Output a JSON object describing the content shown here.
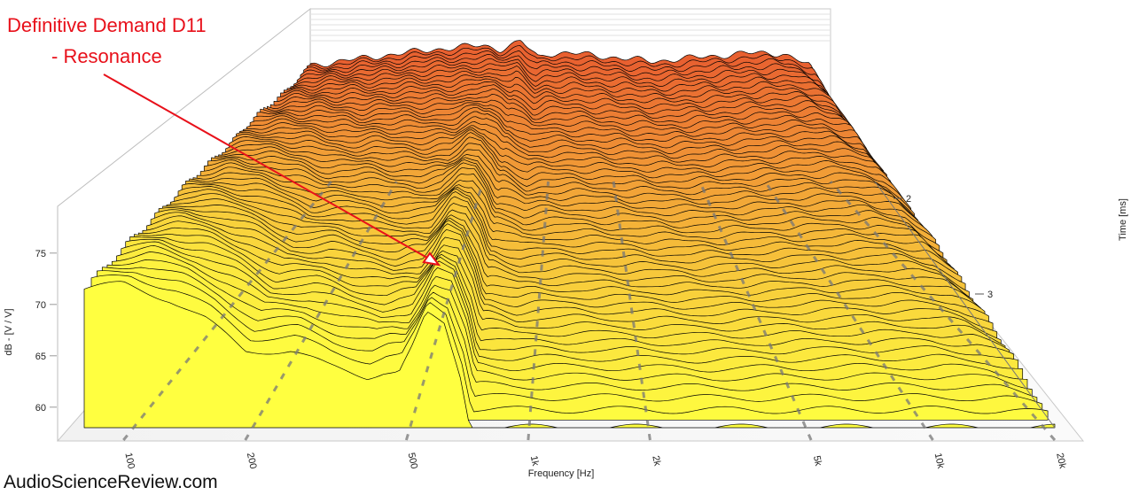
{
  "annotation": {
    "title": "Definitive Demand D11",
    "subtitle": "- Resonance",
    "color": "#e8101a"
  },
  "watermark": "AudioScienceReview.com",
  "chart_data": {
    "type": "area",
    "subtype": "waterfall-3d",
    "xlabel": "Frequency [Hz]",
    "ylabel": "dB - [V / V]",
    "zlabel": "Time [ms]",
    "x_scale": "log",
    "xlim": [
      80,
      20000
    ],
    "ylim": [
      58,
      78
    ],
    "x_ticks": [
      {
        "value": 100,
        "label": "100"
      },
      {
        "value": 200,
        "label": "200"
      },
      {
        "value": 500,
        "label": "500"
      },
      {
        "value": 1000,
        "label": "1k"
      },
      {
        "value": 2000,
        "label": "2k"
      },
      {
        "value": 5000,
        "label": "5k"
      },
      {
        "value": 10000,
        "label": "10k"
      },
      {
        "value": 20000,
        "label": "20k"
      }
    ],
    "y_ticks": [
      {
        "value": 60,
        "label": "60"
      },
      {
        "value": 65,
        "label": "65"
      },
      {
        "value": 70,
        "label": "70"
      },
      {
        "value": 75,
        "label": "75"
      }
    ],
    "z_ticks": [
      {
        "value": 2,
        "label": "2"
      },
      {
        "value": 3,
        "label": "3"
      }
    ],
    "slice_count": 60,
    "first_slice_profile": {
      "freq": [
        80,
        100,
        130,
        160,
        200,
        260,
        320,
        400,
        440,
        480,
        520,
        560,
        620,
        680,
        720,
        760,
        800,
        850,
        20000
      ],
      "db": [
        71.5,
        72,
        70.5,
        68.5,
        65.5,
        65.5,
        64,
        63,
        63.5,
        63.5,
        66,
        69,
        68,
        63,
        58,
        58,
        58,
        58,
        58
      ]
    },
    "rear_slice_profile": {
      "freq": [
        80,
        150,
        300,
        500,
        600,
        680,
        750,
        900,
        1000,
        1300,
        2000,
        3000,
        5000,
        8000,
        12000,
        16000,
        20000
      ],
      "db": [
        75,
        76,
        77,
        77.5,
        77,
        77.5,
        78,
        76,
        76.5,
        76.5,
        76,
        75.5,
        76,
        76.5,
        76.5,
        75,
        70
      ]
    },
    "resonance_annotation_freq": 560,
    "colors": {
      "front": "#ffff40",
      "rear": "#e86030",
      "outline": "#000000",
      "grid_marker": "#777777"
    }
  }
}
